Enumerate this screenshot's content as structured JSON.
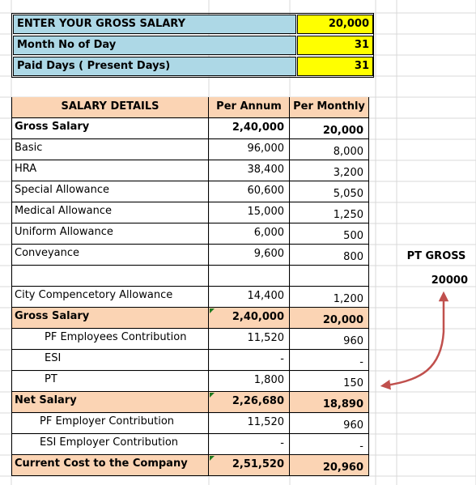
{
  "inputs": [
    {
      "label": "ENTER YOUR GROSS SALARY",
      "value": "20,000"
    },
    {
      "label": "Month No of Day",
      "value": "31"
    },
    {
      "label": "Paid Days ( Present Days)",
      "value": "31"
    }
  ],
  "table": {
    "headers": [
      "SALARY DETAILS",
      "Per Annum",
      "Per Monthly"
    ],
    "rows": [
      {
        "label": "Gross Salary",
        "annum": "2,40,000",
        "monthly": "20,000"
      },
      {
        "label": "Basic",
        "annum": "96,000",
        "monthly": "8,000"
      },
      {
        "label": "HRA",
        "annum": "38,400",
        "monthly": "3,200"
      },
      {
        "label": "Special Allowance",
        "annum": "60,600",
        "monthly": "5,050"
      },
      {
        "label": "Medical Allowance",
        "annum": "15,000",
        "monthly": "1,250"
      },
      {
        "label": "Uniform Allowance",
        "annum": "6,000",
        "monthly": "500"
      },
      {
        "label": "Conveyance",
        "annum": "9,600",
        "monthly": "800"
      },
      {
        "label": "",
        "annum": "",
        "monthly": ""
      },
      {
        "label": "City Compencetory Allowance",
        "annum": "14,400",
        "monthly": "1,200"
      },
      {
        "label": "Gross Salary",
        "annum": "2,40,000",
        "monthly": "20,000"
      },
      {
        "label": "PF Employees Contribution",
        "annum": "11,520",
        "monthly": "960"
      },
      {
        "label": "ESI",
        "annum": "-",
        "monthly": "-"
      },
      {
        "label": "PT",
        "annum": "1,800",
        "monthly": "150"
      },
      {
        "label": "Net Salary",
        "annum": "2,26,680",
        "monthly": "18,890"
      },
      {
        "label": "PF Employer Contribution",
        "annum": "11,520",
        "monthly": "960"
      },
      {
        "label": "ESI Employer Contribution",
        "annum": "-",
        "monthly": "-"
      },
      {
        "label": "Current Cost to the Company",
        "annum": "2,51,520",
        "monthly": "20,960"
      }
    ]
  },
  "side": {
    "pt_gross_label": "PT GROSS",
    "pt_gross_value": "20000"
  },
  "colors": {
    "input_label_bg": "#add8e6",
    "input_value_bg": "#ffff00",
    "header_bg": "#fbd4b4",
    "arrow": "#c0504d"
  }
}
